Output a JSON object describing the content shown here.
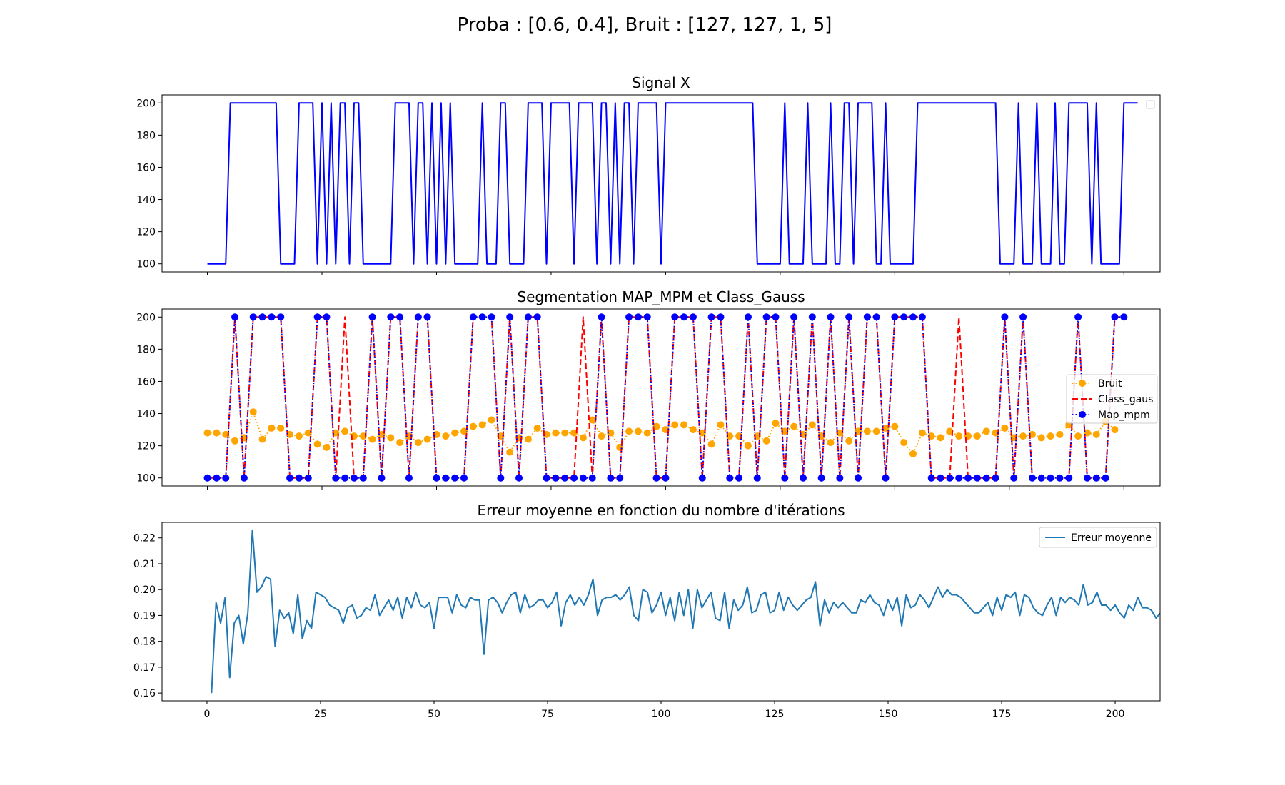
{
  "figure": {
    "suptitle": "Proba : [0.6, 0.4], Bruit : [127, 127, 1, 5]"
  },
  "chart_data": [
    {
      "type": "line",
      "title": "Signal X",
      "xlim": [
        -9.9,
        207.9
      ],
      "ylim": [
        95,
        205
      ],
      "yticks": [
        100,
        120,
        140,
        160,
        180,
        200
      ],
      "xticks": [
        0,
        25,
        50,
        75,
        100,
        125,
        150,
        175,
        200
      ],
      "xticklabels_visible": false,
      "legend": {
        "position": "top-right",
        "entries": []
      },
      "series": [
        {
          "color": "#0000ff",
          "style": "solid",
          "marker": "none",
          "x_start": 0,
          "values": [
            100,
            100,
            100,
            100,
            100,
            200,
            200,
            200,
            200,
            200,
            200,
            200,
            200,
            200,
            200,
            200,
            100,
            100,
            100,
            100,
            200,
            200,
            200,
            200,
            100,
            200,
            100,
            200,
            100,
            200,
            200,
            100,
            200,
            200,
            100,
            100,
            100,
            100,
            100,
            100,
            100,
            200,
            200,
            200,
            200,
            100,
            200,
            200,
            100,
            200,
            100,
            200,
            100,
            200,
            100,
            100,
            100,
            100,
            100,
            100,
            200,
            100,
            100,
            100,
            200,
            200,
            100,
            100,
            100,
            100,
            200,
            200,
            200,
            200,
            100,
            200,
            200,
            200,
            200,
            200,
            100,
            200,
            200,
            200,
            200,
            100,
            200,
            200,
            100,
            200,
            100,
            200,
            200,
            100,
            200,
            200,
            200,
            200,
            200,
            100,
            200,
            200,
            200,
            200,
            200,
            200,
            200,
            200,
            200,
            200,
            200,
            200,
            200,
            200,
            200,
            200,
            200,
            200,
            200,
            200,
            100,
            100,
            100,
            100,
            100,
            100,
            200,
            100,
            100,
            100,
            100,
            200,
            100,
            100,
            100,
            100,
            200,
            100,
            100,
            200,
            200,
            100,
            200,
            200,
            200,
            200,
            100,
            100,
            200,
            100,
            100,
            100,
            100,
            100,
            100,
            200,
            200,
            200,
            200,
            200,
            200,
            200,
            200,
            200,
            200,
            200,
            200,
            200,
            200,
            200,
            200,
            200,
            200,
            100,
            100,
            100,
            100,
            200,
            100,
            100,
            100,
            200,
            100,
            100,
            100,
            200,
            100,
            100,
            200,
            200,
            200,
            200,
            200,
            100,
            200,
            100,
            100,
            100,
            100,
            100,
            200,
            200,
            200,
            200
          ]
        }
      ]
    },
    {
      "type": "line",
      "title": "Segmentation MAP_MPM et Class_Gauss",
      "xlim": [
        -9.9,
        207.9
      ],
      "ylim": [
        95,
        205
      ],
      "yticks": [
        100,
        120,
        140,
        160,
        180,
        200
      ],
      "xticks": [
        0,
        25,
        50,
        75,
        100,
        125,
        150,
        175,
        200
      ],
      "xticklabels_visible": false,
      "legend": {
        "position": "center-right"
      },
      "series": [
        {
          "name": "Bruit",
          "color": "#ffa500",
          "style": "dotted",
          "marker": "circle",
          "x_start": 0,
          "x_step": 2,
          "values": [
            128,
            128,
            127,
            123,
            125,
            141,
            124,
            131,
            131,
            127,
            126,
            128,
            121,
            119,
            128,
            129,
            126,
            126,
            124,
            127,
            125,
            122,
            126,
            122,
            124,
            127,
            126,
            128,
            129,
            132,
            133,
            136,
            126,
            116,
            125,
            124,
            131,
            127,
            128,
            128,
            128,
            125,
            136,
            126,
            128,
            119,
            129,
            129,
            128,
            132,
            130,
            133,
            133,
            130,
            128,
            121,
            133,
            126,
            126,
            120,
            126,
            123,
            134,
            129,
            132,
            127,
            133,
            126,
            122,
            128,
            123,
            129,
            129,
            129,
            131,
            132,
            122,
            115,
            128,
            126,
            125,
            129,
            126,
            126,
            126,
            129,
            128,
            131,
            125,
            126,
            127,
            125,
            126,
            127,
            133,
            126,
            128,
            127,
            135,
            130
          ]
        },
        {
          "name": "Class_gaus",
          "color": "#ff0000",
          "style": "dashed",
          "marker": "none",
          "x_start": 0,
          "x_step": 2,
          "values": [
            100,
            100,
            100,
            200,
            100,
            200,
            200,
            200,
            200,
            100,
            100,
            100,
            200,
            200,
            100,
            200,
            100,
            100,
            200,
            100,
            200,
            200,
            100,
            200,
            200,
            100,
            100,
            100,
            100,
            200,
            200,
            200,
            100,
            200,
            100,
            200,
            200,
            100,
            100,
            100,
            100,
            200,
            100,
            200,
            100,
            100,
            200,
            200,
            200,
            100,
            100,
            200,
            200,
            200,
            100,
            200,
            200,
            100,
            100,
            200,
            100,
            200,
            200,
            100,
            200,
            100,
            200,
            100,
            200,
            100,
            200,
            100,
            200,
            200,
            100,
            200,
            200,
            200,
            200,
            100,
            100,
            100,
            200,
            100,
            100,
            100,
            100,
            200,
            100,
            200,
            100,
            100,
            100,
            100,
            100,
            200,
            100,
            100,
            100,
            200,
            200
          ]
        },
        {
          "name": "Map_mpm",
          "color": "#0000ff",
          "style": "dotted",
          "marker": "circle",
          "x_start": 0,
          "x_step": 2,
          "values": [
            100,
            100,
            100,
            200,
            100,
            200,
            200,
            200,
            200,
            100,
            100,
            100,
            200,
            200,
            100,
            100,
            100,
            100,
            200,
            100,
            200,
            200,
            100,
            200,
            200,
            100,
            100,
            100,
            100,
            200,
            200,
            200,
            100,
            200,
            100,
            200,
            200,
            100,
            100,
            100,
            100,
            100,
            100,
            200,
            100,
            100,
            200,
            200,
            200,
            100,
            100,
            200,
            200,
            200,
            100,
            200,
            200,
            100,
            100,
            200,
            100,
            200,
            200,
            100,
            200,
            100,
            200,
            100,
            200,
            100,
            200,
            100,
            200,
            200,
            100,
            200,
            200,
            200,
            200,
            100,
            100,
            100,
            100,
            100,
            100,
            100,
            100,
            200,
            100,
            200,
            100,
            100,
            100,
            100,
            100,
            200,
            100,
            100,
            100,
            200,
            200
          ]
        }
      ]
    },
    {
      "type": "line",
      "title": "Erreur moyenne en fonction du nombre d'itérations",
      "xlim": [
        -9.9,
        209.9
      ],
      "ylim": [
        0.157,
        0.226
      ],
      "yticks": [
        0.16,
        0.17,
        0.18,
        0.19,
        0.2,
        0.21,
        0.22
      ],
      "yticklabels": [
        "0.16",
        "0.17",
        "0.18",
        "0.19",
        "0.20",
        "0.21",
        "0.22"
      ],
      "xticks": [
        0,
        25,
        50,
        75,
        100,
        125,
        150,
        175,
        200
      ],
      "xticklabels": [
        "0",
        "25",
        "50",
        "75",
        "100",
        "125",
        "150",
        "175",
        "200"
      ],
      "legend": {
        "position": "top-right"
      },
      "series": [
        {
          "name": "Erreur moyenne",
          "color": "#1f77b4",
          "style": "solid",
          "marker": "none",
          "x_start": 1,
          "values": [
            0.16,
            0.195,
            0.187,
            0.197,
            0.166,
            0.187,
            0.19,
            0.179,
            0.191,
            0.223,
            0.199,
            0.201,
            0.205,
            0.204,
            0.178,
            0.192,
            0.189,
            0.191,
            0.183,
            0.198,
            0.181,
            0.188,
            0.185,
            0.199,
            0.198,
            0.197,
            0.194,
            0.193,
            0.192,
            0.187,
            0.193,
            0.194,
            0.189,
            0.19,
            0.193,
            0.192,
            0.198,
            0.19,
            0.193,
            0.196,
            0.192,
            0.197,
            0.189,
            0.197,
            0.193,
            0.199,
            0.194,
            0.193,
            0.195,
            0.185,
            0.197,
            0.197,
            0.197,
            0.191,
            0.198,
            0.194,
            0.193,
            0.197,
            0.196,
            0.196,
            0.175,
            0.196,
            0.197,
            0.195,
            0.191,
            0.195,
            0.198,
            0.199,
            0.191,
            0.198,
            0.193,
            0.194,
            0.196,
            0.196,
            0.193,
            0.195,
            0.199,
            0.186,
            0.195,
            0.198,
            0.194,
            0.197,
            0.194,
            0.198,
            0.204,
            0.19,
            0.196,
            0.197,
            0.197,
            0.198,
            0.196,
            0.198,
            0.201,
            0.19,
            0.188,
            0.2,
            0.199,
            0.191,
            0.194,
            0.199,
            0.19,
            0.197,
            0.188,
            0.199,
            0.19,
            0.2,
            0.185,
            0.2,
            0.193,
            0.196,
            0.199,
            0.189,
            0.188,
            0.199,
            0.185,
            0.196,
            0.192,
            0.194,
            0.201,
            0.191,
            0.192,
            0.198,
            0.199,
            0.191,
            0.192,
            0.199,
            0.192,
            0.197,
            0.194,
            0.192,
            0.194,
            0.196,
            0.197,
            0.203,
            0.186,
            0.196,
            0.191,
            0.195,
            0.193,
            0.195,
            0.193,
            0.191,
            0.191,
            0.196,
            0.195,
            0.198,
            0.195,
            0.194,
            0.19,
            0.196,
            0.192,
            0.197,
            0.186,
            0.198,
            0.193,
            0.194,
            0.198,
            0.196,
            0.193,
            0.197,
            0.201,
            0.197,
            0.2,
            0.198,
            0.198,
            0.197,
            0.195,
            0.193,
            0.191,
            0.191,
            0.193,
            0.195,
            0.19,
            0.197,
            0.192,
            0.198,
            0.197,
            0.199,
            0.19,
            0.198,
            0.197,
            0.193,
            0.191,
            0.19,
            0.194,
            0.197,
            0.19,
            0.197,
            0.195,
            0.197,
            0.196,
            0.194,
            0.202,
            0.194,
            0.195,
            0.199,
            0.194,
            0.194,
            0.192,
            0.194,
            0.191,
            0.189,
            0.194,
            0.192,
            0.197,
            0.193,
            0.193,
            0.192,
            0.189,
            0.191
          ]
        }
      ]
    }
  ]
}
